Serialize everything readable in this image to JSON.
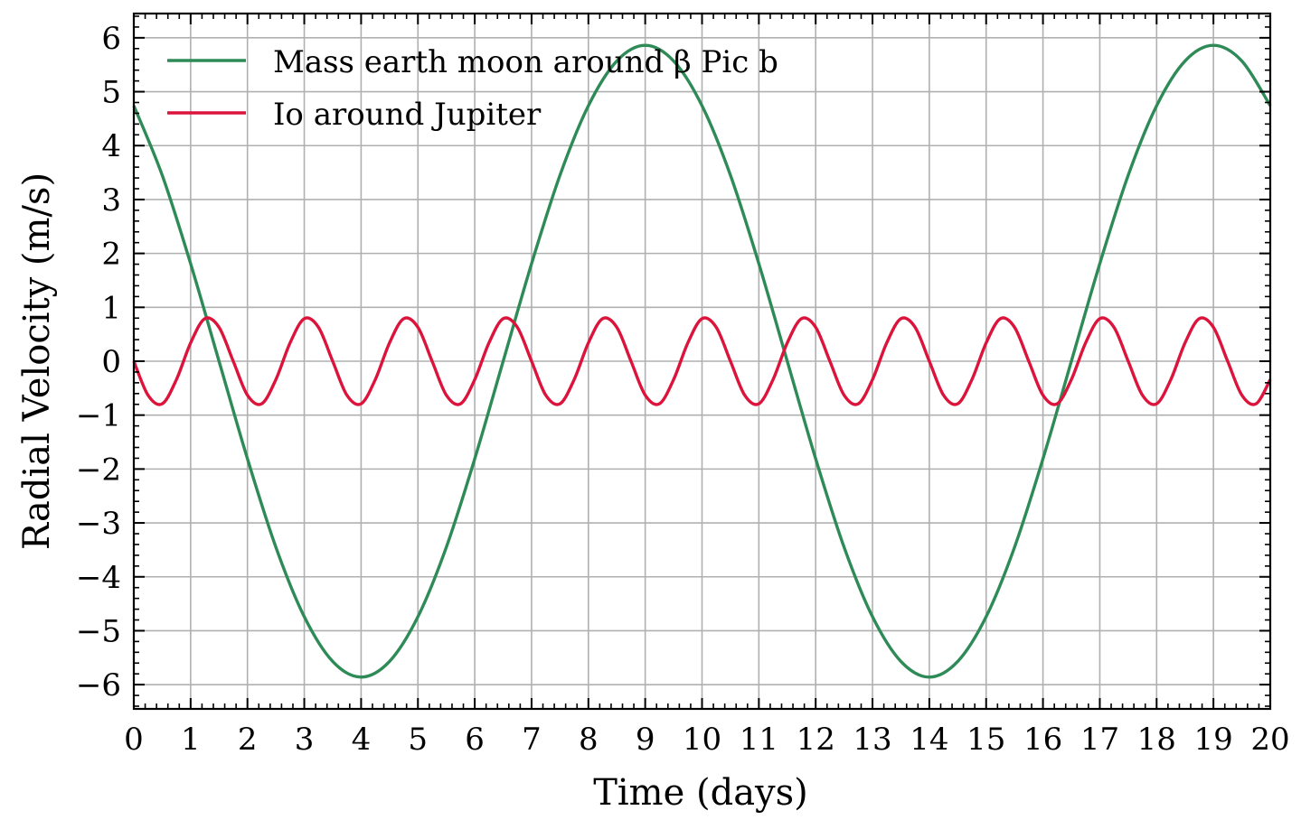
{
  "chart_data": {
    "type": "line",
    "xlabel": "Time (days)",
    "ylabel": "Radial Velocity (m/s)",
    "xlim": [
      0,
      20
    ],
    "ylim": [
      -6.45,
      6.45
    ],
    "xticks": [
      0,
      1,
      2,
      3,
      4,
      5,
      6,
      7,
      8,
      9,
      10,
      11,
      12,
      13,
      14,
      15,
      16,
      17,
      18,
      19,
      20
    ],
    "yticks": [
      6,
      5,
      4,
      3,
      2,
      1,
      0,
      -1,
      -2,
      -3,
      -4,
      -5,
      -6
    ],
    "xtick_labels": [
      "0",
      "1",
      "2",
      "3",
      "4",
      "5",
      "6",
      "7",
      "8",
      "9",
      "10",
      "11",
      "12",
      "13",
      "14",
      "15",
      "16",
      "17",
      "18",
      "19",
      "20"
    ],
    "ytick_labels": [
      "6",
      "5",
      "4",
      "3",
      "2",
      "1",
      "0",
      "−1",
      "−2",
      "−3",
      "−4",
      "−5",
      "−6"
    ],
    "grid": true,
    "legend_position": "top-left",
    "series": [
      {
        "name": "Mass earth moon around β Pic b",
        "color": "#2e8b57",
        "x": [
          0,
          0.5,
          1,
          1.5,
          2,
          2.5,
          3,
          3.5,
          4,
          4.5,
          5,
          5.5,
          6,
          6.5,
          7,
          7.5,
          8,
          8.5,
          9,
          9.5,
          10,
          10.5,
          11,
          11.5,
          12,
          12.5,
          13,
          13.5,
          14,
          14.5,
          15,
          15.5,
          16,
          16.5,
          17,
          17.5,
          18,
          18.5,
          19,
          19.5,
          20
        ],
        "y": [
          4.74,
          3.45,
          1.81,
          0.0,
          -1.81,
          -3.45,
          -4.74,
          -5.57,
          -5.86,
          -5.57,
          -4.74,
          -3.45,
          -1.81,
          0.0,
          1.81,
          3.45,
          4.74,
          5.57,
          5.86,
          5.57,
          4.74,
          3.45,
          1.81,
          0.0,
          -1.81,
          -3.45,
          -4.74,
          -5.57,
          -5.86,
          -5.57,
          -4.74,
          -3.45,
          -1.81,
          0.0,
          1.81,
          3.45,
          4.74,
          5.57,
          5.86,
          5.57,
          4.74
        ]
      },
      {
        "name": "Io around Jupiter",
        "color": "#dc143c",
        "x": [
          0,
          0.25,
          0.5,
          0.75,
          1.0,
          1.25,
          1.5,
          1.75,
          2.0,
          2.25,
          2.5,
          2.75,
          3.0,
          3.25,
          3.5,
          3.75,
          4.0,
          4.25,
          4.5,
          4.75,
          5.0,
          5.25,
          5.5,
          5.75,
          6.0,
          6.25,
          6.5,
          6.75,
          7.0,
          7.25,
          7.5,
          7.75,
          8.0,
          8.25,
          8.5,
          8.75,
          9.0,
          9.25,
          9.5,
          9.75,
          10.0,
          10.25,
          10.5,
          10.75,
          11.0,
          11.25,
          11.5,
          11.75,
          12.0,
          12.25,
          12.5,
          12.75,
          13.0,
          13.25,
          13.5,
          13.75,
          14.0,
          14.25,
          14.5,
          14.75,
          15.0,
          15.25,
          15.5,
          15.75,
          16.0,
          16.25,
          16.5,
          16.75,
          17.0,
          17.25,
          17.5,
          17.75,
          18.0,
          18.25,
          18.5,
          18.75,
          19.0,
          19.25,
          19.5,
          19.75,
          20.0
        ],
        "y": [
          0.0,
          -0.63,
          -0.79,
          -0.34,
          0.34,
          0.79,
          0.63,
          0.0,
          -0.63,
          -0.79,
          -0.34,
          0.34,
          0.79,
          0.63,
          0.0,
          -0.63,
          -0.79,
          -0.34,
          0.34,
          0.79,
          0.63,
          0.0,
          -0.63,
          -0.79,
          -0.34,
          0.34,
          0.79,
          0.63,
          0.0,
          -0.63,
          -0.79,
          -0.34,
          0.34,
          0.79,
          0.63,
          0.0,
          -0.63,
          -0.79,
          -0.34,
          0.34,
          0.79,
          0.63,
          0.0,
          -0.63,
          -0.79,
          -0.34,
          0.34,
          0.79,
          0.63,
          0.0,
          -0.63,
          -0.79,
          -0.34,
          0.34,
          0.79,
          0.63,
          0.0,
          -0.63,
          -0.79,
          -0.34,
          0.34,
          0.79,
          0.63,
          0.0,
          -0.63,
          -0.79,
          -0.34,
          0.34,
          0.79,
          0.63,
          0.0,
          -0.63,
          -0.79,
          -0.34,
          0.34,
          0.79,
          0.63,
          0.0,
          -0.63,
          -0.79,
          -0.34
        ]
      }
    ]
  }
}
